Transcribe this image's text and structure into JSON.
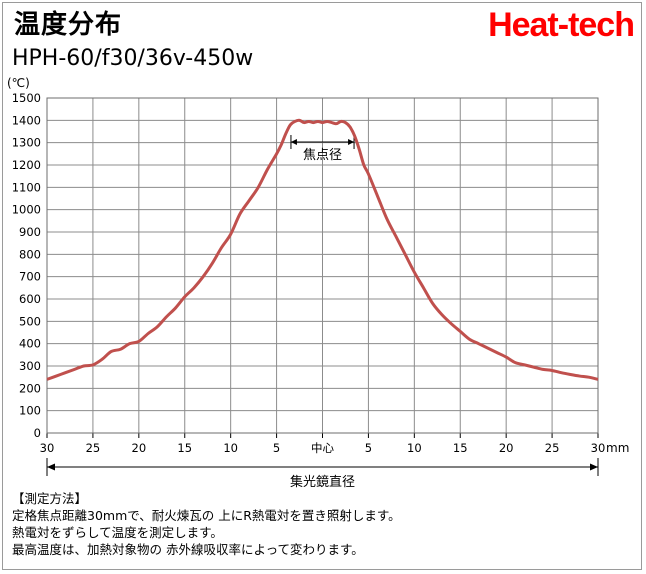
{
  "header": {
    "title": "温度分布",
    "subtitle": "HPH-60/f30/36v-450w",
    "brand": "Heat-tech"
  },
  "chart_data": {
    "type": "line",
    "title": "温度分布",
    "subtitle": "HPH-60/f30/36v-450w",
    "ylabel": "(℃)",
    "xlabel": "mm",
    "ylim": [
      0,
      1500
    ],
    "yticks": [
      0,
      100,
      200,
      300,
      400,
      500,
      600,
      700,
      800,
      900,
      1000,
      1100,
      1200,
      1300,
      1400,
      1500
    ],
    "xlim": [
      -30,
      30
    ],
    "xticks": [
      -30,
      -25,
      -20,
      -15,
      -10,
      -5,
      0,
      5,
      10,
      15,
      20,
      25,
      30
    ],
    "xtick_labels": [
      "30",
      "25",
      "20",
      "15",
      "10",
      "5",
      "中心",
      "5",
      "10",
      "15",
      "20",
      "25",
      "30"
    ],
    "grid": true,
    "line_color": "#c0504d",
    "series": [
      {
        "x": [
          -30,
          -29,
          -28,
          -27,
          -26,
          -25,
          -24,
          -23,
          -22,
          -21,
          -20,
          -19,
          -18,
          -17,
          -16,
          -15,
          -14,
          -13,
          -12,
          -11,
          -10,
          -9,
          -8,
          -7,
          -6,
          -5,
          -4.5,
          -4,
          -3.5,
          -3,
          -2.5,
          -2,
          -1.5,
          -1,
          -0.5,
          0,
          0.5,
          1,
          1.5,
          2,
          2.5,
          3,
          3.5,
          4,
          4.5,
          5,
          6,
          7,
          8,
          9,
          10,
          11,
          12,
          13,
          14,
          15,
          16,
          17,
          18,
          19,
          20,
          21,
          22,
          23,
          24,
          25,
          26,
          27,
          28,
          29,
          30
        ],
        "y": [
          240,
          255,
          270,
          285,
          300,
          305,
          330,
          365,
          375,
          400,
          410,
          445,
          475,
          520,
          560,
          610,
          650,
          700,
          760,
          830,
          890,
          980,
          1040,
          1100,
          1180,
          1250,
          1290,
          1340,
          1380,
          1395,
          1400,
          1390,
          1395,
          1390,
          1395,
          1390,
          1395,
          1390,
          1385,
          1395,
          1390,
          1370,
          1330,
          1270,
          1200,
          1160,
          1060,
          960,
          880,
          800,
          720,
          650,
          580,
          530,
          490,
          455,
          420,
          400,
          380,
          360,
          340,
          315,
          305,
          295,
          285,
          280,
          270,
          262,
          255,
          250,
          240
        ]
      }
    ],
    "annotations": {
      "focal_label": "焦点径",
      "focal_range": [
        -3,
        3
      ],
      "collector_label": "集光鏡直径",
      "collector_range": [
        -30,
        30
      ]
    }
  },
  "notes": {
    "heading": "【測定方法】",
    "lines": [
      "定格焦点距離30mmで、耐火煉瓦の 上にR熱電対を置き照射します。",
      "熱電対をずらして温度を測定します。",
      "最高温度は、加熱対象物の 赤外線吸収率によって変わります。"
    ]
  }
}
